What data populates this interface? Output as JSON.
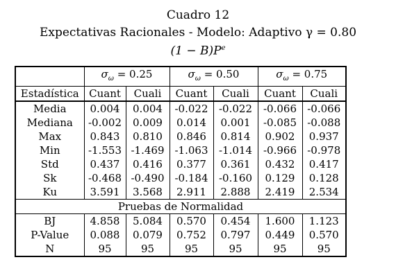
{
  "caption": {
    "line1": "Cuadro 12",
    "line2": "Expectativas Racionales - Modelo: Adaptivo γ = 0.80",
    "line3_left": "(1 − B)P",
    "line3_sup": "e"
  },
  "header": {
    "sigma_groups": [
      {
        "symbol": "σ",
        "sub": "ω",
        "value": "= 0.25"
      },
      {
        "symbol": "σ",
        "sub": "ω",
        "value": "= 0.50"
      },
      {
        "symbol": "σ",
        "sub": "ω",
        "value": "= 0.75"
      }
    ],
    "stat_label": "Estadística",
    "columns": [
      "Cuant",
      "Cuali",
      "Cuant",
      "Cuali",
      "Cuant",
      "Cuali"
    ]
  },
  "stats_rows": [
    {
      "label": "Media",
      "values": [
        "0.004",
        "0.004",
        "-0.022",
        "-0.022",
        "-0.066",
        "-0.066"
      ]
    },
    {
      "label": "Mediana",
      "values": [
        "-0.002",
        "0.009",
        "0.014",
        "0.001",
        "-0.085",
        "-0.088"
      ]
    },
    {
      "label": "Max",
      "values": [
        "0.843",
        "0.810",
        "0.846",
        "0.814",
        "0.902",
        "0.937"
      ]
    },
    {
      "label": "Min",
      "values": [
        "-1.553",
        "-1.469",
        "-1.063",
        "-1.014",
        "-0.966",
        "-0.978"
      ]
    },
    {
      "label": "Std",
      "values": [
        "0.437",
        "0.416",
        "0.377",
        "0.361",
        "0.432",
        "0.417"
      ]
    },
    {
      "label": "Sk",
      "values": [
        "-0.468",
        "-0.490",
        "-0.184",
        "-0.160",
        "0.129",
        "0.128"
      ]
    },
    {
      "label": "Ku",
      "values": [
        "3.591",
        "3.568",
        "2.911",
        "2.888",
        "2.419",
        "2.534"
      ]
    }
  ],
  "normality_title": "Pruebas de Normalidad",
  "normality_rows": [
    {
      "label": "BJ",
      "values": [
        "4.858",
        "5.084",
        "0.570",
        "0.454",
        "1.600",
        "1.123"
      ]
    },
    {
      "label": "P-Value",
      "values": [
        "0.088",
        "0.079",
        "0.752",
        "0.797",
        "0.449",
        "0.570"
      ]
    },
    {
      "label": "N",
      "values": [
        "95",
        "95",
        "95",
        "95",
        "95",
        "95"
      ]
    }
  ]
}
